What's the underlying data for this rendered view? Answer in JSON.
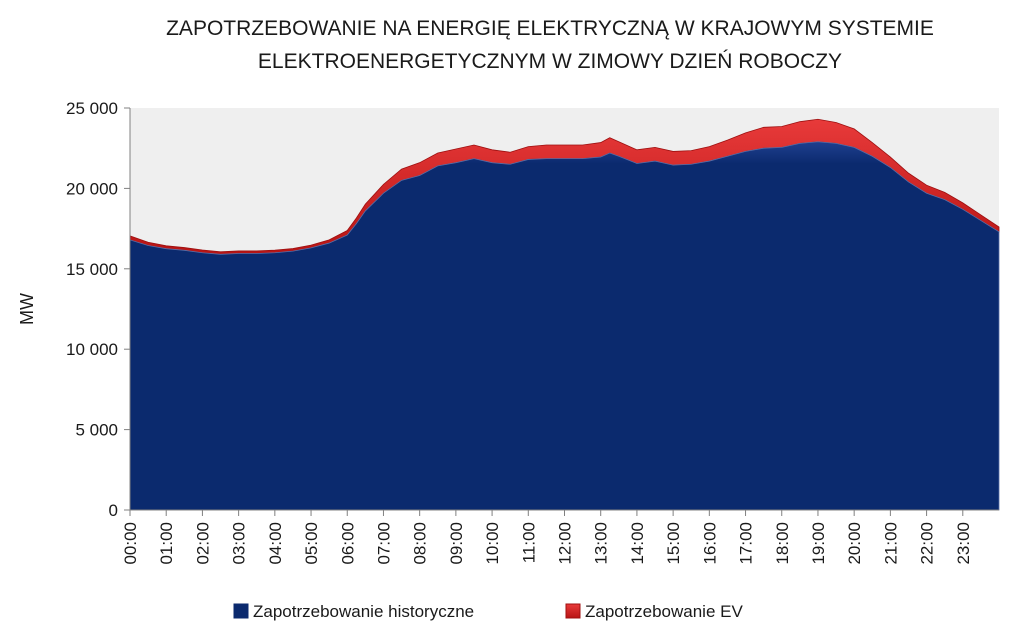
{
  "chart_data": {
    "type": "area",
    "title": [
      "ZAPOTRZEBOWANIE NA ENERGIĘ ELEKTRYCZNĄ W KRAJOWYM SYSTEMIE",
      "ELEKTROENERGETYCZNYM W ZIMOWY DZIEŃ ROBOCZY"
    ],
    "ylabel": "MW",
    "xlabel": "",
    "ylim": [
      0,
      25000
    ],
    "yticks": [
      0,
      5000,
      10000,
      15000,
      20000,
      25000
    ],
    "ytick_labels": [
      "0",
      "5 000",
      "10 000",
      "15 000",
      "20 000",
      "25 000"
    ],
    "x_tick_labels": [
      "00:00",
      "01:00",
      "02:00",
      "03:00",
      "04:00",
      "05:00",
      "06:00",
      "07:00",
      "08:00",
      "09:00",
      "10:00",
      "11:00",
      "12:00",
      "13:00",
      "14:00",
      "15:00",
      "16:00",
      "17:00",
      "18:00",
      "19:00",
      "20:00",
      "21:00",
      "22:00",
      "23:00"
    ],
    "x_hours": [
      0,
      0.5,
      1,
      1.5,
      2,
      2.5,
      3,
      3.5,
      4,
      4.5,
      5,
      5.5,
      6,
      6.25,
      6.5,
      7,
      7.5,
      8,
      8.5,
      9,
      9.5,
      10,
      10.5,
      11,
      11.5,
      12,
      12.5,
      13,
      13.25,
      13.5,
      14,
      14.5,
      15,
      15.5,
      16,
      16.5,
      17,
      17.5,
      18,
      18.5,
      19,
      19.5,
      20,
      20.5,
      21,
      21.5,
      22,
      22.5,
      23,
      23.5,
      23.9
    ],
    "series": [
      {
        "name": "Zapotrzebowanie historyczne",
        "color": "#0b2a6e",
        "values": [
          16800,
          16450,
          16250,
          16150,
          16000,
          15900,
          15950,
          15950,
          16000,
          16100,
          16300,
          16600,
          17100,
          17800,
          18600,
          19700,
          20500,
          20800,
          21400,
          21600,
          21850,
          21600,
          21500,
          21800,
          21850,
          21850,
          21850,
          21950,
          22200,
          22000,
          21550,
          21700,
          21450,
          21500,
          21700,
          22000,
          22300,
          22500,
          22550,
          22800,
          22900,
          22800,
          22550,
          22000,
          21300,
          20400,
          19700,
          19300,
          18700,
          18000,
          17300
        ]
      },
      {
        "name": "Zapotrzebowanie EV",
        "color": "#d42020",
        "values": [
          250,
          200,
          180,
          170,
          170,
          160,
          160,
          160,
          160,
          160,
          170,
          200,
          280,
          350,
          420,
          550,
          700,
          800,
          800,
          850,
          850,
          800,
          750,
          800,
          850,
          850,
          850,
          900,
          950,
          900,
          850,
          850,
          850,
          850,
          900,
          1000,
          1150,
          1300,
          1300,
          1350,
          1400,
          1300,
          1150,
          850,
          650,
          550,
          500,
          450,
          400,
          350,
          300
        ]
      }
    ],
    "stacked": true,
    "legend_position": "bottom"
  }
}
